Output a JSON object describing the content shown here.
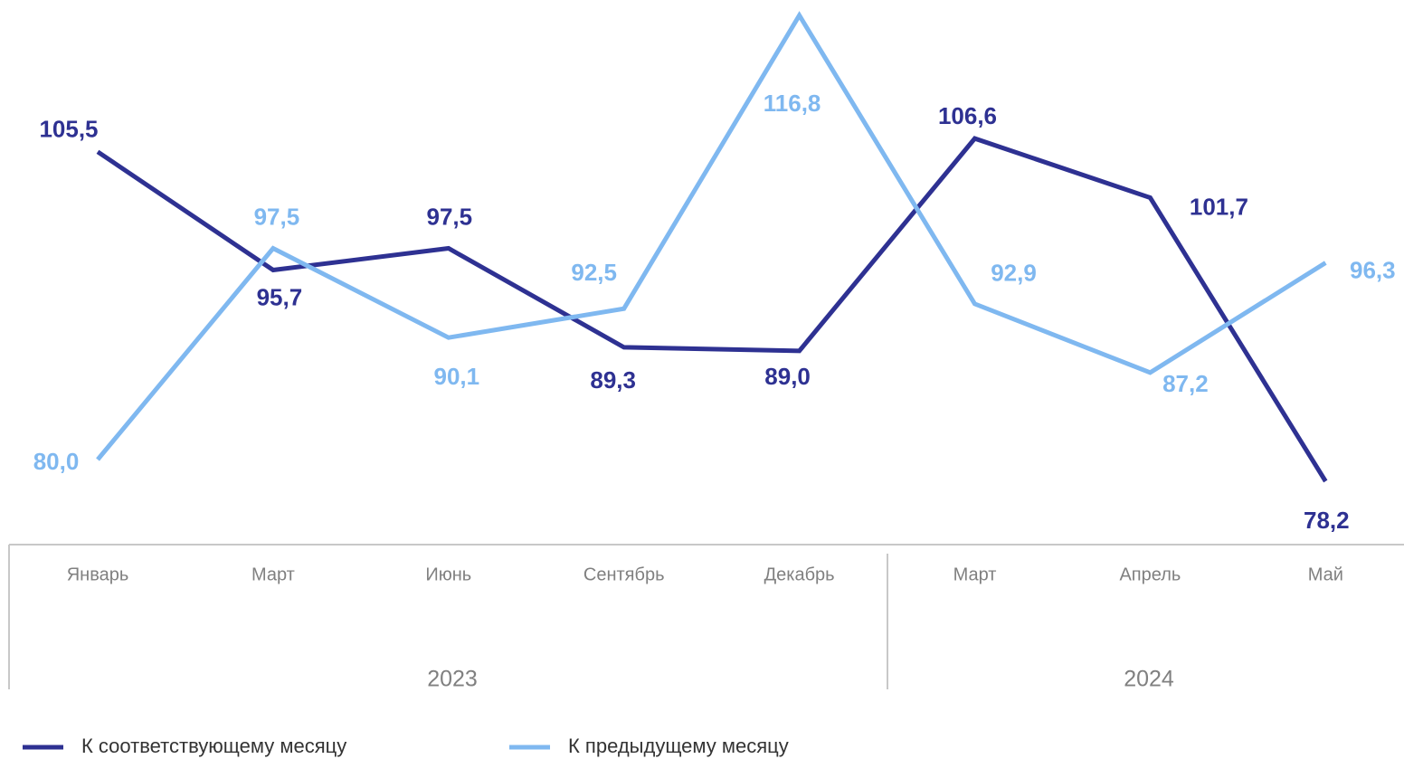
{
  "chart_data": {
    "type": "line",
    "categories": [
      "Январь",
      "Март",
      "Июнь",
      "Сентябрь",
      "Декабрь",
      "Март",
      "Апрель",
      "Май"
    ],
    "groups": [
      "2023",
      "2024"
    ],
    "series": [
      {
        "name": "К соответствующему месяцу",
        "color": "#2e3192",
        "values": [
          105.5,
          95.7,
          97.5,
          89.3,
          89.0,
          106.6,
          101.7,
          78.2
        ],
        "value_labels": [
          "105,5",
          "95,7",
          "97,5",
          "89,3",
          "89,0",
          "106,6",
          "101,7",
          "78,2"
        ]
      },
      {
        "name": "К предыдущему месяцу",
        "color": "#7fb8f0",
        "values": [
          80.0,
          97.5,
          90.1,
          92.5,
          116.8,
          92.9,
          87.2,
          96.3
        ],
        "value_labels": [
          "80,0",
          "97,5",
          "90,1",
          "92,5",
          "116,8",
          "92,9",
          "87,2",
          "96,3"
        ]
      }
    ],
    "legend": "bottom"
  }
}
